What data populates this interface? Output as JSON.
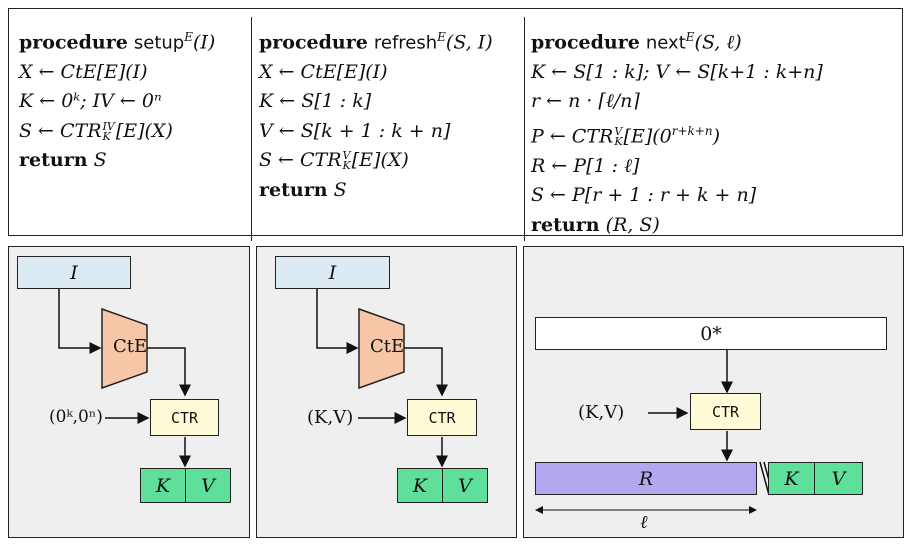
{
  "procedures": {
    "setup": {
      "title": "setup",
      "title_sup": "E",
      "title_args": "(I)",
      "lines": [
        "X ← CtE[E](I)",
        "K ← 0ᵏ;  IV ← 0ⁿ",
        "S ← CTR",
        "return S"
      ],
      "ctr_sup": "IV",
      "ctr_sub": "K",
      "ctr_args": "[E](X)"
    },
    "refresh": {
      "title": "refresh",
      "title_sup": "E",
      "title_args": "(S, I)",
      "lines": [
        "X ← CtE[E](I)",
        "K ← S[1 : k]",
        "V ← S[k + 1 : k + n]",
        "S ← CTR",
        "return S"
      ],
      "ctr_sup": "V",
      "ctr_sub": "K",
      "ctr_args": "[E](X)"
    },
    "next": {
      "title": "next",
      "title_sup": "E",
      "title_args": "(S, ℓ)",
      "lines": [
        "K ← S[1 : k];  V ← S[k+1 : k+n]",
        "r ← n · ⌈ℓ/n⌉",
        "P ← CTR",
        "R ← P[1 : ℓ]",
        "S ← P[r + 1 : r + k + n]",
        "return (R, S)"
      ],
      "ctr_sup": "V",
      "ctr_sub": "K",
      "ctr_args": "[E](0",
      "ctr_args_sup": "r+k+n",
      "ctr_args_end": ")"
    },
    "keyword": "procedure",
    "return_kw": "return"
  },
  "diagrams": {
    "setup": {
      "input_label": "I",
      "cte_label": "CtE",
      "ctr_label": "CTR",
      "side_input": "(0ᵏ,0ⁿ)",
      "k_label": "K",
      "v_label": "V"
    },
    "refresh": {
      "input_label": "I",
      "cte_label": "CtE",
      "ctr_label": "CTR",
      "side_input": "(K,V)",
      "k_label": "K",
      "v_label": "V"
    },
    "next": {
      "zero_label": "0*",
      "ctr_label": "CTR",
      "side_input": "(K,V)",
      "r_label": "R",
      "k_label": "K",
      "v_label": "V",
      "ell_label": "ℓ"
    }
  },
  "colors": {
    "input": "#dcebf3",
    "cte": "#f7c6a6",
    "ctr": "#fffbd6",
    "kv": "#5fe09a",
    "r": "#b3a8f0",
    "panel_bg": "#efefef"
  }
}
